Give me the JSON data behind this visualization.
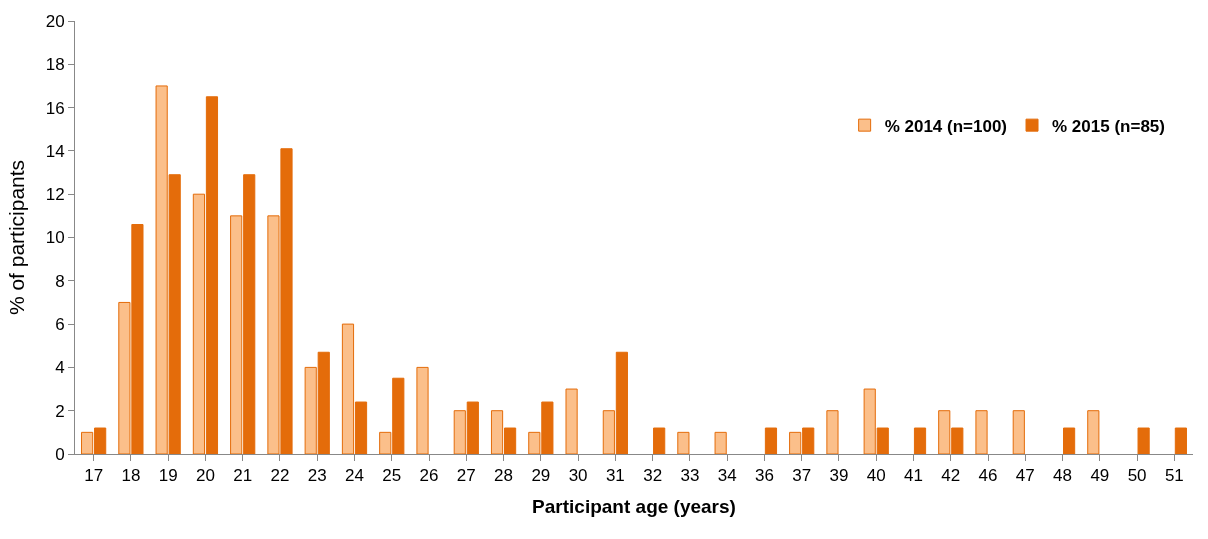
{
  "chart_data": {
    "type": "bar",
    "xlabel": "Participant age (years)",
    "ylabel": "% of participants",
    "categories": [
      "17",
      "18",
      "19",
      "20",
      "21",
      "22",
      "23",
      "24",
      "25",
      "26",
      "27",
      "28",
      "29",
      "30",
      "31",
      "32",
      "33",
      "34",
      "36",
      "37",
      "39",
      "40",
      "41",
      "42",
      "46",
      "47",
      "48",
      "49",
      "50",
      "51"
    ],
    "series": [
      {
        "name": "% 2014 (n=100)",
        "color": "#fbbf8a",
        "values": [
          1,
          7,
          17,
          12,
          11,
          11,
          4,
          6,
          1,
          4,
          2,
          2,
          1,
          3,
          2,
          0,
          1,
          1,
          0,
          1,
          2,
          3,
          0,
          2,
          2,
          2,
          0,
          2,
          0,
          0
        ]
      },
      {
        "name": "% 2015 (n=85)",
        "color": "#e46c0a",
        "values": [
          1.2,
          10.6,
          12.9,
          16.5,
          12.9,
          14.1,
          4.7,
          2.4,
          3.5,
          0,
          2.4,
          1.2,
          2.4,
          0,
          4.7,
          1.2,
          0,
          0,
          1.2,
          1.2,
          0,
          1.2,
          1.2,
          1.2,
          0,
          0,
          1.2,
          0,
          1.2,
          1.2
        ]
      }
    ],
    "ylim": [
      0,
      20
    ],
    "yticks": [
      0,
      2,
      4,
      6,
      8,
      10,
      12,
      14,
      16,
      18,
      20
    ],
    "legend": "top right"
  }
}
